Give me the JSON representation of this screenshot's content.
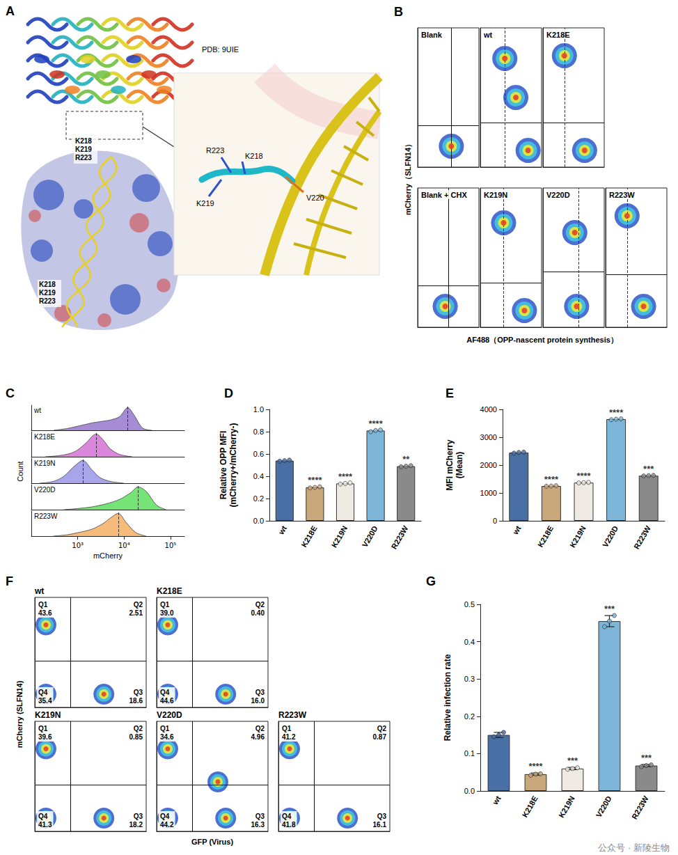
{
  "structure": {
    "panel": "A",
    "pdb": "PDB: 9UIE",
    "surface_labels": [
      [
        "K218",
        "K219",
        "R223"
      ],
      [
        "K218",
        "K219",
        "R223"
      ]
    ],
    "zoom_labels": [
      "R223",
      "K218",
      "K219",
      "V220"
    ]
  },
  "watermark": "公众号 · 新陵生物",
  "chart_data": [
    {
      "panel": "B",
      "type": "scatter",
      "x_label": "AF488（OPP-nascent protein synthesis）",
      "y_label": "mCherry（SLFN14）",
      "xlim": [
        0,
        100
      ],
      "ylim": [
        0,
        100
      ],
      "tick_labels": false,
      "plots": [
        {
          "title": "Blank",
          "populations": [
            [
              55,
              15
            ]
          ],
          "gate_x": 55,
          "gate_y": 30
        },
        {
          "title": "wt",
          "populations": [
            [
              40,
              78
            ],
            [
              58,
              50
            ],
            [
              78,
              12
            ]
          ],
          "gate_y": 32,
          "dashed_x": 40
        },
        {
          "title": "K218E",
          "populations": [
            [
              35,
              80
            ],
            [
              68,
              12
            ]
          ],
          "gate_y": 32,
          "dashed_x": 35
        },
        {
          "title": "Blank + CHX",
          "populations": [
            [
              45,
              15
            ]
          ],
          "gate_x": 50,
          "gate_y": 30
        },
        {
          "title": "K219N",
          "populations": [
            [
              38,
              75
            ],
            [
              72,
              12
            ]
          ],
          "gate_y": 32,
          "dashed_x": 38
        },
        {
          "title": "V220D",
          "populations": [
            [
              52,
              68
            ],
            [
              55,
              15
            ]
          ],
          "gate_y": 40,
          "dashed_x": 58
        },
        {
          "title": "R223W",
          "populations": [
            [
              35,
              80
            ],
            [
              62,
              15
            ]
          ],
          "gate_y": 38,
          "dashed_x": 35
        }
      ]
    },
    {
      "panel": "C",
      "type": "area",
      "log": "x",
      "x_label": "mCherry",
      "y_label": "Count",
      "xlim": [
        100,
        200000
      ],
      "ylim": [
        0,
        1.1
      ],
      "xticks": [
        {
          "value": 1000,
          "label": "10³"
        },
        {
          "value": 10000,
          "label": "10⁴"
        },
        {
          "value": 100000,
          "label": "10⁵"
        }
      ],
      "series": [
        {
          "name": "wt",
          "color": "#9b7fd0",
          "x": [
            300,
            600,
            1000,
            2000,
            3000,
            5000,
            8000,
            12000,
            16000,
            25000,
            40000
          ],
          "values": [
            0,
            0.08,
            0.18,
            0.32,
            0.38,
            0.45,
            0.6,
            1.0,
            0.7,
            0.1,
            0
          ],
          "peak": 12000
        },
        {
          "name": "K218E",
          "color": "#d77bd8",
          "x": [
            200,
            400,
            700,
            1000,
            1500,
            2500,
            3500,
            5000,
            8000,
            15000
          ],
          "values": [
            0,
            0.05,
            0.15,
            0.3,
            0.6,
            1.0,
            0.75,
            0.35,
            0.1,
            0
          ],
          "peak": 2500
        },
        {
          "name": "K219N",
          "color": "#9f9be8",
          "x": [
            150,
            300,
            500,
            800,
            1300,
            2000,
            3000,
            5000,
            10000
          ],
          "values": [
            0,
            0.08,
            0.3,
            0.7,
            1.0,
            0.6,
            0.25,
            0.08,
            0
          ],
          "peak": 1300
        },
        {
          "name": "V220D",
          "color": "#66e066",
          "x": [
            500,
            1000,
            2000,
            4000,
            8000,
            14000,
            20000,
            30000,
            50000,
            80000
          ],
          "values": [
            0,
            0.05,
            0.12,
            0.25,
            0.45,
            0.75,
            1.0,
            0.8,
            0.2,
            0
          ],
          "peak": 20000
        },
        {
          "name": "R223W",
          "color": "#f5b26b",
          "x": [
            300,
            600,
            1000,
            2000,
            3500,
            5500,
            7500,
            11000,
            18000,
            30000
          ],
          "values": [
            0,
            0.06,
            0.15,
            0.3,
            0.55,
            0.85,
            1.0,
            0.6,
            0.15,
            0
          ],
          "peak": 7500
        }
      ]
    },
    {
      "panel": "D",
      "type": "bar",
      "y_label": [
        "Relative OPP MFI",
        "(mCherry+/mCherry-)"
      ],
      "categories": [
        "wt",
        "K218E",
        "K219N",
        "V220D",
        "R223W"
      ],
      "values": [
        0.54,
        0.3,
        0.335,
        0.81,
        0.49
      ],
      "replicates": [
        [
          0.535,
          0.54,
          0.545
        ],
        [
          0.295,
          0.3,
          0.305
        ],
        [
          0.33,
          0.335,
          0.34
        ],
        [
          0.8,
          0.81,
          0.815
        ],
        [
          0.485,
          0.49,
          0.495
        ]
      ],
      "significance": [
        null,
        "****",
        "****",
        "****",
        "**"
      ],
      "colors": [
        "#4a6fa5",
        "#c9a97c",
        "#efebe4",
        "#7eb6d9",
        "#8a8a8a"
      ],
      "ylim": [
        0,
        1.0
      ],
      "yticks": [
        {
          "value": 0,
          "label": "0.0"
        },
        0.2,
        0.4,
        0.6,
        0.8,
        {
          "value": 1.0,
          "label": "1.0"
        }
      ]
    },
    {
      "panel": "E",
      "type": "bar",
      "y_label": [
        "MFI mCherry",
        "(Mean)"
      ],
      "categories": [
        "wt",
        "K218E",
        "K219N",
        "V220D",
        "R223W"
      ],
      "values": [
        2450,
        1250,
        1370,
        3650,
        1620
      ],
      "replicates": [
        [
          2430,
          2455,
          2465
        ],
        [
          1240,
          1250,
          1260
        ],
        [
          1360,
          1370,
          1380
        ],
        [
          3630,
          3650,
          3660
        ],
        [
          1610,
          1620,
          1630
        ]
      ],
      "significance": [
        null,
        "****",
        "****",
        "****",
        "***"
      ],
      "colors": [
        "#4a6fa5",
        "#c9a97c",
        "#efebe4",
        "#7eb6d9",
        "#8a8a8a"
      ],
      "ylim": [
        0,
        4000
      ],
      "yticks": [
        0,
        1000,
        2000,
        3000,
        4000
      ]
    },
    {
      "panel": "F",
      "type": "scatter",
      "x_label": "GFP (Virus)",
      "y_label": "mCherry (SLFN14)",
      "xlim": [
        0,
        100
      ],
      "ylim": [
        0,
        100
      ],
      "tick_labels": false,
      "plots": [
        {
          "title": "wt",
          "populations": [
            [
              10,
              75
            ],
            [
              10,
              12
            ],
            [
              62,
              12
            ]
          ],
          "gate_x": 32,
          "gate_y": 42,
          "quadrants": [
            {
              "name": "Q1",
              "label": "43.6"
            },
            {
              "name": "Q2",
              "label": "2.51"
            },
            {
              "name": "Q3",
              "label": "18.6"
            },
            {
              "name": "Q4",
              "label": "35.4"
            }
          ]
        },
        {
          "title": "K218E",
          "populations": [
            [
              10,
              75
            ],
            [
              10,
              12
            ],
            [
              62,
              12
            ]
          ],
          "gate_x": 32,
          "gate_y": 42,
          "quadrants": [
            {
              "name": "Q1",
              "label": "39.0"
            },
            {
              "name": "Q2",
              "label": "0.40"
            },
            {
              "name": "Q3",
              "label": "16.0"
            },
            {
              "name": "Q4",
              "label": "44.6"
            }
          ]
        },
        {
          "title": "K219N",
          "populations": [
            [
              10,
              75
            ],
            [
              10,
              12
            ],
            [
              62,
              12
            ]
          ],
          "gate_x": 32,
          "gate_y": 42,
          "quadrants": [
            {
              "name": "Q1",
              "label": "39.6"
            },
            {
              "name": "Q2",
              "label": "0.85"
            },
            {
              "name": "Q3",
              "label": "18.2"
            },
            {
              "name": "Q4",
              "label": "41.3"
            }
          ]
        },
        {
          "title": "V220D",
          "populations": [
            [
              10,
              75
            ],
            [
              10,
              12
            ],
            [
              62,
              12
            ],
            [
              55,
              45
            ]
          ],
          "gate_x": 32,
          "gate_y": 42,
          "quadrants": [
            {
              "name": "Q1",
              "label": "34.6"
            },
            {
              "name": "Q2",
              "label": "4.96"
            },
            {
              "name": "Q3",
              "label": "16.3"
            },
            {
              "name": "Q4",
              "label": "44.2"
            }
          ]
        },
        {
          "title": "R223W",
          "populations": [
            [
              10,
              75
            ],
            [
              10,
              12
            ],
            [
              62,
              12
            ]
          ],
          "gate_x": 32,
          "gate_y": 42,
          "quadrants": [
            {
              "name": "Q1",
              "label": "41.2"
            },
            {
              "name": "Q2",
              "label": "0.87"
            },
            {
              "name": "Q3",
              "label": "16.1"
            },
            {
              "name": "Q4",
              "label": "41.8"
            }
          ]
        }
      ]
    },
    {
      "panel": "G",
      "type": "bar",
      "y_label": [
        "Relative infection rate"
      ],
      "categories": [
        "wt",
        "K218E",
        "K219N",
        "V220D",
        "R223W"
      ],
      "values": [
        0.15,
        0.045,
        0.06,
        0.455,
        0.068
      ],
      "errors": [
        0.007,
        0.003,
        0.003,
        0.015,
        0.003
      ],
      "replicates": [
        [
          0.145,
          0.15,
          0.157
        ],
        [
          0.042,
          0.045,
          0.046
        ],
        [
          0.058,
          0.06,
          0.062
        ],
        [
          0.44,
          0.455,
          0.47
        ],
        [
          0.065,
          0.068,
          0.07
        ]
      ],
      "significance": [
        null,
        "****",
        "***",
        "***",
        "***"
      ],
      "colors": [
        "#4a6fa5",
        "#c9a97c",
        "#efebe4",
        "#7eb6d9",
        "#8a8a8a"
      ],
      "ylim": [
        0,
        0.5
      ],
      "yticks": [
        {
          "value": 0,
          "label": "0.0"
        },
        0.1,
        0.2,
        0.3,
        0.4,
        0.5
      ]
    }
  ]
}
